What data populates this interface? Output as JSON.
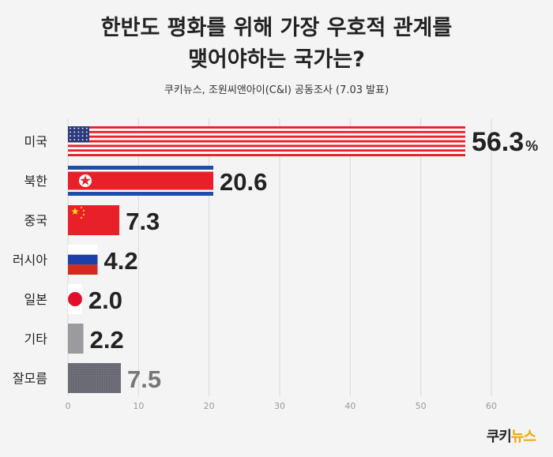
{
  "title": {
    "line1": "한반도 평화를 위해 가장 우호적 관계를",
    "line2": "맺어야하는 국가는?",
    "subtitle": "쿠키뉴스, 조원씨앤아이(C&I) 공동조사 (7.03 발표)"
  },
  "chart_data": {
    "type": "bar",
    "orientation": "horizontal",
    "categories": [
      "미국",
      "북한",
      "중국",
      "러시아",
      "일본",
      "기타",
      "잘모름"
    ],
    "values": [
      56.3,
      20.6,
      7.3,
      4.2,
      2.0,
      2.2,
      7.5
    ],
    "value_labels": [
      "56.3",
      "20.6",
      "7.3",
      "4.2",
      "2.0",
      "2.2",
      "7.5"
    ],
    "value_suffix": "%",
    "xlim": [
      0,
      60
    ],
    "xticks": [
      0,
      10,
      20,
      30,
      40,
      50,
      60
    ],
    "grid": true,
    "bar_styles": [
      "us-flag",
      "nk-flag",
      "cn-flag",
      "ru-flag",
      "jp-flag",
      "gray",
      "gray-dark"
    ]
  },
  "colors": {
    "red": "#e8202a",
    "navy": "#2b3a7c",
    "blue": "#1d4ea8",
    "gray": "#9a9a9f",
    "dark_gray": "#6e6e78",
    "label": "#222222",
    "muted_label": "#777777",
    "accent": "#f2a900"
  },
  "logo": {
    "part1": "쿠키",
    "part2": "뉴스"
  }
}
